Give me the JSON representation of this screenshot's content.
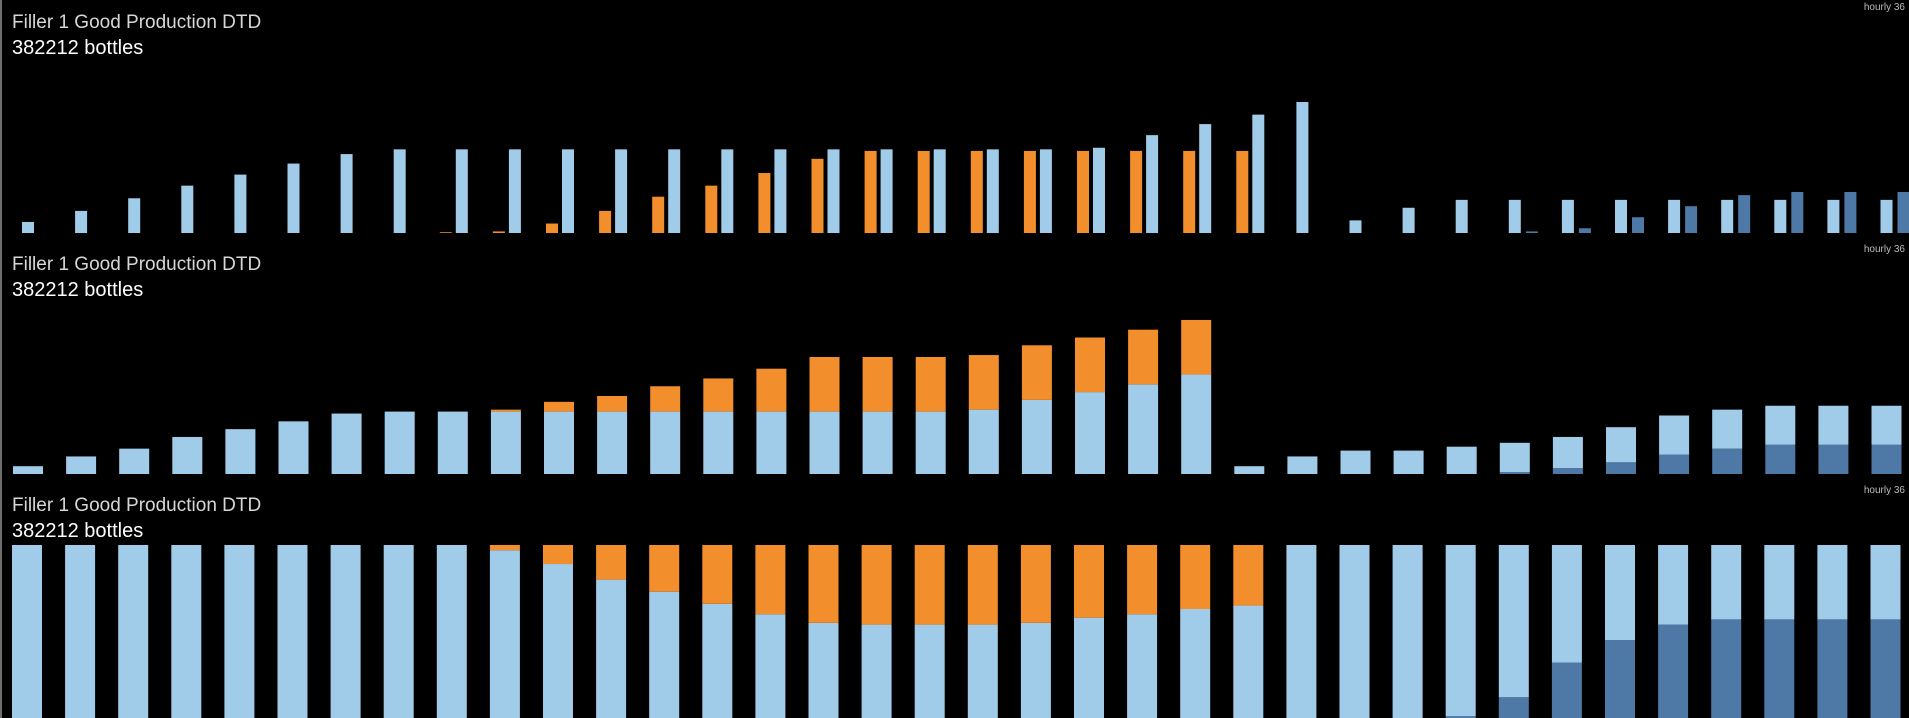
{
  "colors": {
    "good": "#a1cce9",
    "reject": "#f28e2b",
    "other": "#4e79a7",
    "background": "#000000"
  },
  "panels": [
    {
      "title": "Filler 1 Good Production DTD",
      "value_text": "382212 bottles",
      "badge": "hourly 36"
    },
    {
      "title": "Filler 1 Good Production DTD",
      "value_text": "382212 bottles",
      "badge": "hourly 36"
    },
    {
      "title": "Filler 1 Good Production DTD",
      "value_text": "382212 bottles",
      "badge": "hourly 36"
    }
  ],
  "chart_data": [
    {
      "type": "bar",
      "layout": "grouped",
      "title": "Filler 1 Good Production DTD",
      "series": [
        {
          "key": "reject",
          "values": [
            0,
            0,
            0,
            0,
            0,
            0,
            0,
            0,
            0.5,
            1,
            6,
            14,
            23,
            30,
            38,
            47,
            52,
            52,
            52,
            52,
            52,
            52,
            52,
            52,
            0,
            0,
            0,
            0,
            0,
            0,
            0,
            0,
            0,
            0,
            0,
            0
          ]
        },
        {
          "key": "good",
          "values": [
            7,
            14,
            22,
            30,
            37,
            44,
            50,
            53,
            53,
            53,
            53,
            53,
            53,
            53,
            53,
            53,
            53,
            53,
            53,
            53,
            54,
            62,
            69,
            75,
            83,
            8,
            16,
            21,
            21,
            21,
            21,
            21,
            21,
            21,
            21,
            21
          ]
        },
        {
          "key": "other",
          "values": [
            0,
            0,
            0,
            0,
            0,
            0,
            0,
            0,
            0,
            0,
            0,
            0,
            0,
            0,
            0,
            0,
            0,
            0,
            0,
            0,
            0,
            0,
            0,
            0,
            0,
            0,
            0,
            0,
            1,
            3,
            10,
            17,
            24,
            26,
            26,
            26
          ]
        }
      ],
      "ylim": [
        0,
        83
      ]
    },
    {
      "type": "bar",
      "layout": "stacked",
      "title": "Filler 1 Good Production DTD",
      "series": [
        {
          "key": "other",
          "values": [
            0,
            0,
            0,
            0,
            0,
            0,
            0,
            0,
            0,
            0,
            0,
            0,
            0,
            0,
            0,
            0,
            0,
            0,
            0,
            0,
            0,
            0,
            0,
            0,
            0,
            0,
            0,
            0,
            1,
            3,
            6,
            10,
            13,
            15,
            15,
            15
          ]
        },
        {
          "key": "good",
          "values": [
            4,
            9,
            13,
            19,
            23,
            27,
            31,
            32,
            32,
            32,
            32,
            32,
            32,
            32,
            32,
            32,
            32,
            32,
            33,
            38,
            42,
            46,
            51,
            4,
            9,
            12,
            12,
            14,
            15,
            16,
            18,
            20,
            20,
            20,
            20,
            20
          ]
        },
        {
          "key": "reject",
          "values": [
            0,
            0,
            0,
            0,
            0,
            0,
            0,
            0,
            0,
            1,
            5,
            8,
            13,
            17,
            22,
            28,
            28,
            28,
            28,
            28,
            28,
            28,
            28,
            0,
            0,
            0,
            0,
            0,
            0,
            0,
            0,
            0,
            0,
            0,
            0,
            0
          ]
        }
      ],
      "ylim": [
        0,
        80
      ]
    },
    {
      "type": "bar",
      "layout": "stacked_percent",
      "title": "Filler 1 Good Production DTD",
      "series": [
        {
          "key": "other",
          "values": [
            0,
            0,
            0,
            0,
            0,
            0,
            0,
            0,
            0,
            0,
            0,
            0,
            0,
            0,
            0,
            0,
            0,
            0,
            0,
            0,
            0,
            0,
            0,
            0,
            0,
            0,
            0,
            1,
            12,
            32,
            45,
            54,
            57,
            57,
            57,
            57
          ]
        },
        {
          "key": "good",
          "values": [
            100,
            100,
            100,
            100,
            100,
            100,
            100,
            100,
            100,
            97,
            89,
            80,
            73,
            66,
            60,
            55,
            54,
            54,
            54,
            55,
            58,
            60,
            63,
            65,
            100,
            100,
            100,
            99,
            88,
            68,
            55,
            46,
            43,
            43,
            43,
            43
          ]
        },
        {
          "key": "reject",
          "values": [
            0,
            0,
            0,
            0,
            0,
            0,
            0,
            0,
            0,
            3,
            11,
            20,
            27,
            34,
            40,
            45,
            46,
            46,
            46,
            45,
            42,
            40,
            37,
            35,
            0,
            0,
            0,
            0,
            0,
            0,
            0,
            0,
            0,
            0,
            0,
            0
          ]
        }
      ],
      "ylim": [
        0,
        100
      ]
    }
  ]
}
